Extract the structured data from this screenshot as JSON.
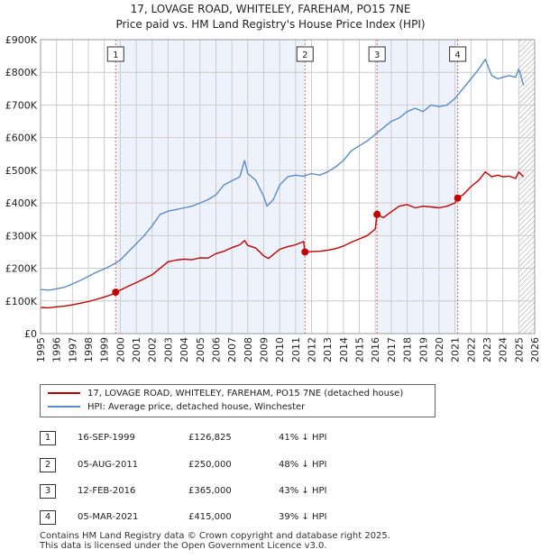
{
  "title_line1": "17, LOVAGE ROAD, WHITELEY, FAREHAM, PO15 7NE",
  "title_line2": "Price paid vs. HM Land Registry's House Price Index (HPI)",
  "colors": {
    "property_line": "#c00000",
    "hpi_line": "#5b8cc8",
    "shaded": "#eef2fc",
    "marker_line": "#cc6666",
    "grid": "#cccccc"
  },
  "legend": {
    "property_label": "17, LOVAGE ROAD, WHITELEY, FAREHAM, PO15 7NE (detached house)",
    "hpi_label": "HPI: Average price, detached house, Winchester"
  },
  "transactions": [
    {
      "num": "1",
      "date": "16-SEP-1999",
      "price": "£126,825",
      "hpi": "41% ↓ HPI"
    },
    {
      "num": "2",
      "date": "05-AUG-2011",
      "price": "£250,000",
      "hpi": "48% ↓ HPI"
    },
    {
      "num": "3",
      "date": "12-FEB-2016",
      "price": "£365,000",
      "hpi": "43% ↓ HPI"
    },
    {
      "num": "4",
      "date": "05-MAR-2021",
      "price": "£415,000",
      "hpi": "39% ↓ HPI"
    }
  ],
  "footer_line1": "Contains HM Land Registry data © Crown copyright and database right 2025.",
  "footer_line2": "This data is licensed under the Open Government Licence v3.0.",
  "chart_data": {
    "type": "line",
    "title": "17, LOVAGE ROAD, WHITELEY, FAREHAM, PO15 7NE",
    "subtitle": "Price paid vs. HM Land Registry's House Price Index (HPI)",
    "xlim": [
      1995,
      2026
    ],
    "ylim": [
      0,
      900000
    ],
    "x_ticks": [
      1995,
      1996,
      1997,
      1998,
      1999,
      2000,
      2001,
      2002,
      2003,
      2004,
      2005,
      2006,
      2007,
      2008,
      2009,
      2010,
      2011,
      2012,
      2013,
      2014,
      2015,
      2016,
      2017,
      2018,
      2019,
      2020,
      2021,
      2022,
      2023,
      2024,
      2025,
      2026
    ],
    "y_ticks": [
      0,
      100000,
      200000,
      300000,
      400000,
      500000,
      600000,
      700000,
      800000,
      900000
    ],
    "y_tick_labels": [
      "£0",
      "£100K",
      "£200K",
      "£300K",
      "£400K",
      "£500K",
      "£600K",
      "£700K",
      "£800K",
      "£900K"
    ],
    "grid": true,
    "shaded_ranges": [
      [
        1999.71,
        2011.59
      ],
      [
        2016.11,
        2021.17
      ]
    ],
    "future_hatch_from": 2025.0,
    "sales": [
      {
        "label": "1",
        "x": 1999.71,
        "y": 126825
      },
      {
        "label": "2",
        "x": 2011.59,
        "y": 250000
      },
      {
        "label": "3",
        "x": 2016.11,
        "y": 365000
      },
      {
        "label": "4",
        "x": 2021.17,
        "y": 415000
      }
    ],
    "series": [
      {
        "name": "17, LOVAGE ROAD, WHITELEY, FAREHAM, PO15 7NE (detached house)",
        "x": [
          1995.0,
          1995.5,
          1996.0,
          1996.5,
          1997.0,
          1997.5,
          1998.0,
          1998.5,
          1999.0,
          1999.5,
          1999.71,
          2000.0,
          2000.5,
          2001.0,
          2001.5,
          2002.0,
          2002.5,
          2003.0,
          2003.5,
          2004.0,
          2004.5,
          2005.0,
          2005.5,
          2006.0,
          2006.5,
          2007.0,
          2007.5,
          2007.8,
          2008.0,
          2008.5,
          2009.0,
          2009.3,
          2009.6,
          2010.0,
          2010.5,
          2011.0,
          2011.5,
          2011.59,
          2012.0,
          2012.5,
          2013.0,
          2013.5,
          2014.0,
          2014.5,
          2015.0,
          2015.5,
          2016.0,
          2016.11,
          2016.5,
          2017.0,
          2017.5,
          2018.0,
          2018.5,
          2019.0,
          2019.5,
          2020.0,
          2020.5,
          2021.0,
          2021.17,
          2021.5,
          2022.0,
          2022.5,
          2022.9,
          2023.3,
          2023.7,
          2024.0,
          2024.4,
          2024.8,
          2025.0,
          2025.1,
          2025.3
        ],
        "values": [
          80000,
          79000,
          82000,
          84000,
          88000,
          93000,
          98000,
          105000,
          112000,
          120000,
          126825,
          133000,
          145000,
          156000,
          168000,
          180000,
          200000,
          220000,
          225000,
          228000,
          226000,
          232000,
          231000,
          245000,
          252000,
          263000,
          272000,
          285000,
          270000,
          262000,
          238000,
          230000,
          242000,
          258000,
          266000,
          272000,
          282000,
          250000,
          251000,
          252000,
          255000,
          260000,
          268000,
          280000,
          290000,
          300000,
          320000,
          365000,
          355000,
          373000,
          390000,
          395000,
          385000,
          390000,
          388000,
          385000,
          390000,
          400000,
          415000,
          425000,
          450000,
          470000,
          495000,
          480000,
          485000,
          480000,
          482000,
          475000,
          495000,
          490000,
          480000
        ]
      },
      {
        "name": "HPI: Average price, detached house, Winchester",
        "x": [
          1995.0,
          1995.5,
          1996.0,
          1996.5,
          1997.0,
          1997.5,
          1998.0,
          1998.5,
          1999.0,
          1999.5,
          2000.0,
          2000.5,
          2001.0,
          2001.5,
          2002.0,
          2002.5,
          2003.0,
          2003.5,
          2004.0,
          2004.5,
          2005.0,
          2005.5,
          2006.0,
          2006.5,
          2007.0,
          2007.5,
          2007.8,
          2008.0,
          2008.5,
          2009.0,
          2009.2,
          2009.6,
          2010.0,
          2010.5,
          2011.0,
          2011.5,
          2012.0,
          2012.5,
          2013.0,
          2013.5,
          2014.0,
          2014.5,
          2015.0,
          2015.5,
          2016.0,
          2016.5,
          2017.0,
          2017.5,
          2018.0,
          2018.5,
          2019.0,
          2019.5,
          2020.0,
          2020.5,
          2021.0,
          2021.5,
          2022.0,
          2022.5,
          2022.9,
          2023.3,
          2023.7,
          2024.0,
          2024.4,
          2024.8,
          2025.0,
          2025.1,
          2025.3
        ],
        "values": [
          135000,
          133000,
          137000,
          142000,
          152000,
          163000,
          175000,
          188000,
          198000,
          210000,
          225000,
          250000,
          275000,
          300000,
          330000,
          365000,
          375000,
          380000,
          385000,
          390000,
          400000,
          410000,
          425000,
          455000,
          468000,
          480000,
          530000,
          490000,
          470000,
          420000,
          390000,
          410000,
          455000,
          480000,
          485000,
          482000,
          490000,
          485000,
          495000,
          510000,
          530000,
          560000,
          575000,
          590000,
          610000,
          630000,
          650000,
          660000,
          680000,
          690000,
          680000,
          700000,
          695000,
          700000,
          720000,
          750000,
          780000,
          810000,
          840000,
          790000,
          780000,
          785000,
          790000,
          785000,
          810000,
          795000,
          760000
        ]
      }
    ]
  }
}
